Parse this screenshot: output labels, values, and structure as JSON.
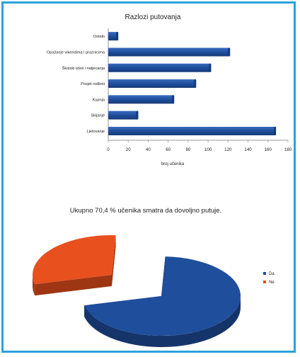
{
  "chart_data": [
    {
      "type": "bar",
      "orientation": "horizontal",
      "title": "Razlozi putovanja",
      "xlabel": "broj učenika",
      "ylabel": "",
      "categories": [
        "Ostalo",
        "Opažanje vikendima i praznicima",
        "Školski izleti i natjecanja",
        "Posjet rodbini",
        "Kupnja",
        "Skijanje",
        "Ljetovanje"
      ],
      "values": [
        10,
        122,
        103,
        88,
        66,
        30,
        168
      ],
      "xlim": [
        0,
        180
      ],
      "ticks": [
        0,
        20,
        40,
        60,
        80,
        100,
        120,
        140,
        160,
        180
      ],
      "grid": false,
      "color": "#1f4e9c"
    },
    {
      "type": "pie",
      "title": "Ukupno 70,4 % učenika smatra da dovoljno putuje.",
      "categories": [
        "Da",
        "Ne"
      ],
      "values": [
        70.4,
        29.6
      ],
      "colors": [
        "#1f4e9c",
        "#e8501e"
      ],
      "legend_position": "right"
    }
  ]
}
